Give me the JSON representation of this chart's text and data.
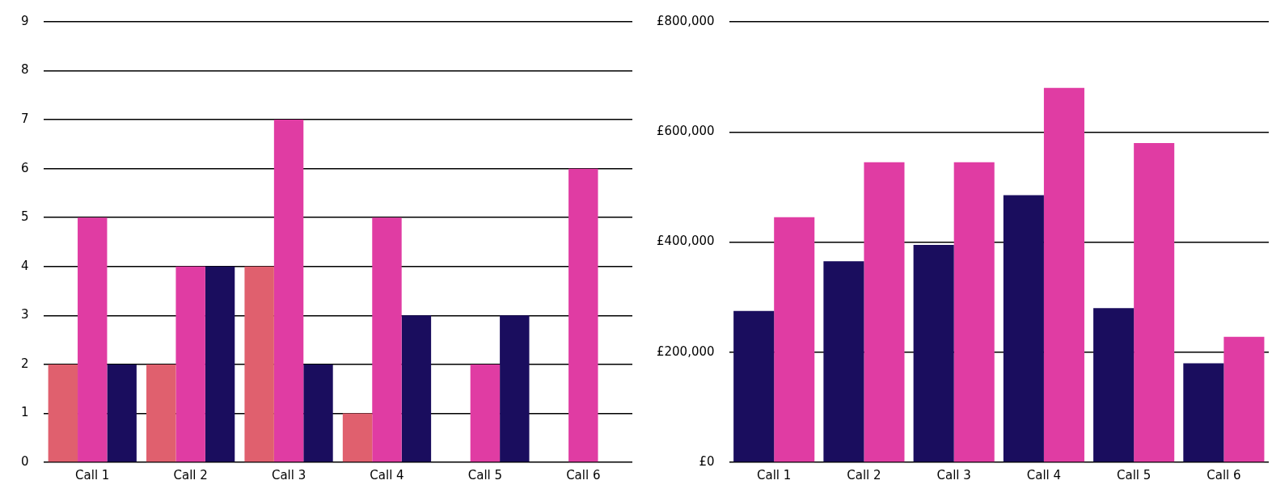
{
  "chart_data": [
    {
      "type": "bar",
      "categories": [
        "Call 1",
        "Call 2",
        "Call 3",
        "Call 4",
        "Call 5",
        "Call 6"
      ],
      "series": [
        {
          "color": "#e0606e",
          "values": [
            2,
            2,
            4,
            1,
            null,
            null
          ]
        },
        {
          "color": "#e03ca3",
          "values": [
            5,
            4,
            7,
            5,
            2,
            6
          ]
        },
        {
          "color": "#1a0d5e",
          "values": [
            2,
            4,
            2,
            3,
            3,
            null
          ]
        }
      ],
      "ylim": [
        0,
        9
      ],
      "yticks": [
        0,
        1,
        2,
        3,
        4,
        5,
        6,
        7,
        8,
        9
      ],
      "grid": "y",
      "legend": false
    },
    {
      "type": "bar",
      "categories": [
        "Call 1",
        "Call 2",
        "Call 3",
        "Call 4",
        "Call 5",
        "Call 6"
      ],
      "series": [
        {
          "color": "#1a0d5e",
          "values": [
            275000,
            365000,
            395000,
            485000,
            280000,
            180000
          ]
        },
        {
          "color": "#e03ca3",
          "values": [
            445000,
            545000,
            545000,
            680000,
            580000,
            228000
          ]
        }
      ],
      "ylim": [
        0,
        800000
      ],
      "yticks": [
        {
          "value": 0,
          "label": "£0"
        },
        {
          "value": 200000,
          "label": "£200,000"
        },
        {
          "value": 400000,
          "label": "£400,000"
        },
        {
          "value": 600000,
          "label": "£600,000"
        },
        {
          "value": 800000,
          "label": "£800,000"
        }
      ],
      "grid": "y",
      "legend": false
    }
  ]
}
